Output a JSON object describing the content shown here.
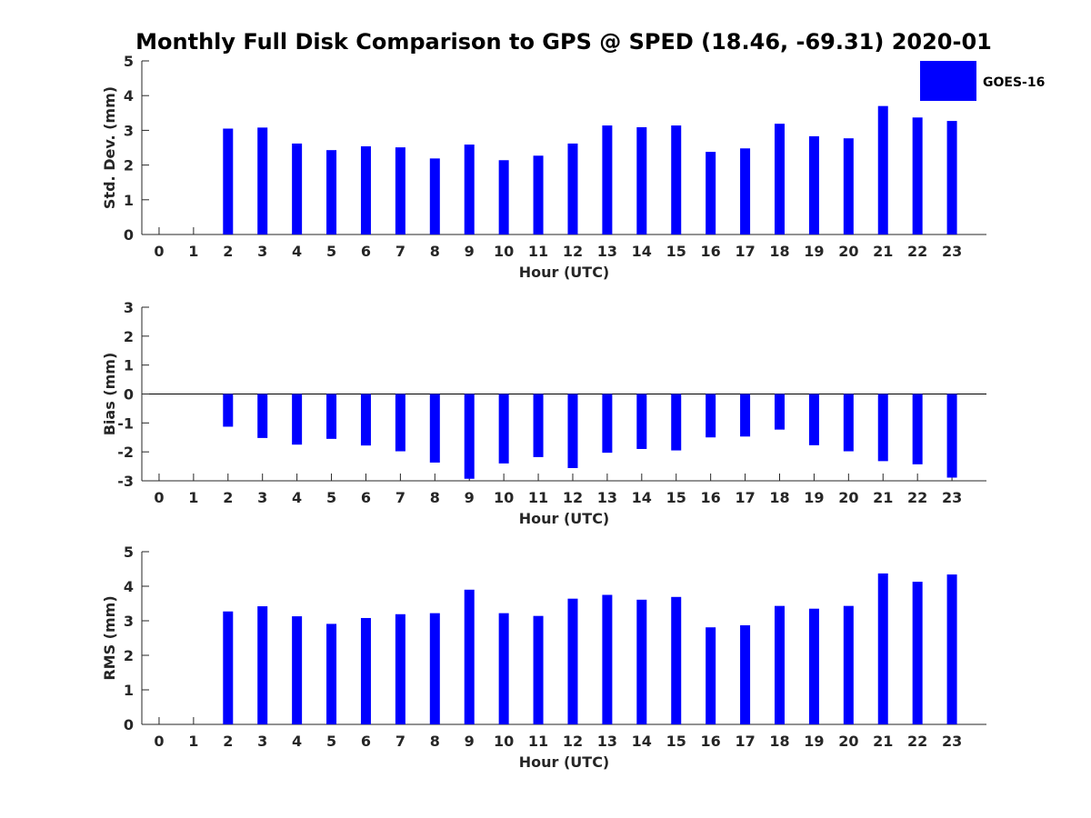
{
  "title": "Monthly Full Disk Comparison to GPS @ SPED (18.46, -69.31) 2020-01",
  "legend": {
    "label": "GOES-16",
    "color": "#0000ff",
    "placement": "top-right"
  },
  "chart_data": [
    {
      "type": "bar",
      "xlabel": "Hour (UTC)",
      "ylabel": "Std. Dev. (mm)",
      "ylim": [
        0,
        5
      ],
      "yticks": [
        "0",
        "1",
        "2",
        "3",
        "4",
        "5"
      ],
      "categories": [
        "0",
        "1",
        "2",
        "3",
        "4",
        "5",
        "6",
        "7",
        "8",
        "9",
        "10",
        "11",
        "12",
        "13",
        "14",
        "15",
        "16",
        "17",
        "18",
        "19",
        "20",
        "21",
        "22",
        "23"
      ],
      "series": [
        {
          "name": "GOES-16",
          "values": [
            null,
            null,
            3.05,
            3.08,
            2.62,
            2.43,
            2.54,
            2.51,
            2.19,
            2.59,
            2.14,
            2.27,
            2.62,
            3.14,
            3.09,
            3.14,
            2.38,
            2.48,
            3.19,
            2.83,
            2.77,
            3.7,
            3.37,
            3.27
          ]
        }
      ]
    },
    {
      "type": "bar",
      "xlabel": "Hour (UTC)",
      "ylabel": "Bias (mm)",
      "ylim": [
        -3,
        3
      ],
      "yticks": [
        "-3",
        "-2",
        "-1",
        "0",
        "1",
        "2",
        "3"
      ],
      "categories": [
        "0",
        "1",
        "2",
        "3",
        "4",
        "5",
        "6",
        "7",
        "8",
        "9",
        "10",
        "11",
        "12",
        "13",
        "14",
        "15",
        "16",
        "17",
        "18",
        "19",
        "20",
        "21",
        "22",
        "23"
      ],
      "series": [
        {
          "name": "GOES-16",
          "values": [
            null,
            null,
            -1.13,
            -1.52,
            -1.75,
            -1.55,
            -1.78,
            -1.98,
            -2.37,
            -2.93,
            -2.4,
            -2.18,
            -2.56,
            -2.03,
            -1.9,
            -1.95,
            -1.5,
            -1.47,
            -1.23,
            -1.77,
            -1.98,
            -2.32,
            -2.43,
            -2.89
          ]
        }
      ]
    },
    {
      "type": "bar",
      "xlabel": "Hour (UTC)",
      "ylabel": "RMS (mm)",
      "ylim": [
        0,
        5
      ],
      "yticks": [
        "0",
        "1",
        "2",
        "3",
        "4",
        "5"
      ],
      "categories": [
        "0",
        "1",
        "2",
        "3",
        "4",
        "5",
        "6",
        "7",
        "8",
        "9",
        "10",
        "11",
        "12",
        "13",
        "14",
        "15",
        "16",
        "17",
        "18",
        "19",
        "20",
        "21",
        "22",
        "23"
      ],
      "series": [
        {
          "name": "GOES-16",
          "values": [
            null,
            null,
            3.27,
            3.42,
            3.13,
            2.91,
            3.08,
            3.19,
            3.22,
            3.9,
            3.22,
            3.14,
            3.64,
            3.75,
            3.61,
            3.69,
            2.81,
            2.87,
            3.43,
            3.35,
            3.43,
            4.37,
            4.13,
            4.34
          ]
        }
      ]
    }
  ]
}
